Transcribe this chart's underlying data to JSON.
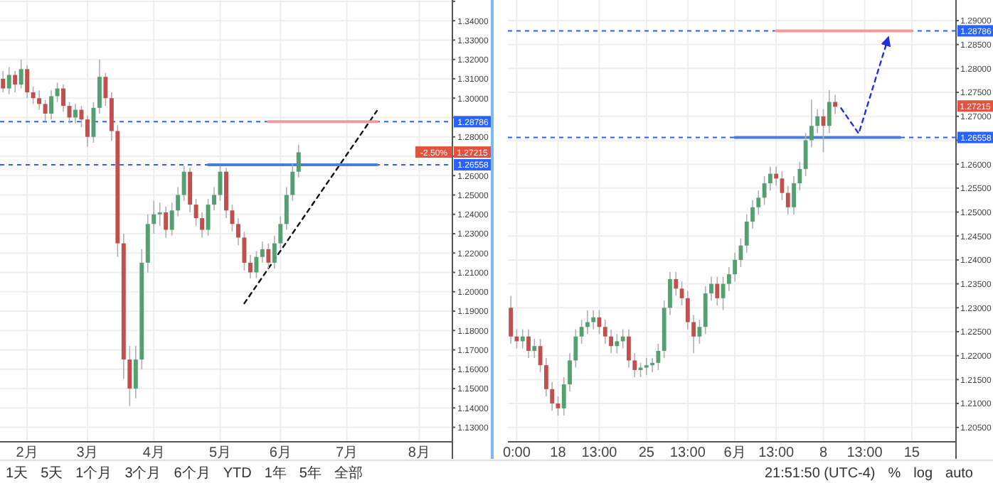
{
  "chart_data": [
    {
      "type": "candlestick",
      "categories": [
        null,
        null,
        null,
        null,
        "2月",
        null,
        null,
        null,
        null,
        null,
        null,
        null,
        null,
        null,
        "3月",
        null,
        null,
        null,
        null,
        null,
        null,
        null,
        null,
        null,
        null,
        "4月",
        null,
        null,
        null,
        null,
        null,
        null,
        null,
        null,
        null,
        null,
        "5月",
        null,
        null,
        null,
        null,
        null,
        null,
        null,
        null,
        null,
        "6月",
        null,
        null,
        null,
        null,
        null,
        null,
        null,
        null,
        null,
        null,
        "7月",
        null,
        null,
        null,
        null,
        null,
        null,
        null,
        null,
        null,
        null,
        null,
        "8月",
        null,
        null,
        null,
        null,
        null
      ],
      "ohlc": [
        [
          1.31,
          1.314,
          1.303,
          1.305
        ],
        [
          1.305,
          1.316,
          1.302,
          1.312
        ],
        [
          1.312,
          1.314,
          1.303,
          1.307
        ],
        [
          1.307,
          1.32,
          1.305,
          1.315
        ],
        [
          1.315,
          1.317,
          1.3,
          1.303
        ],
        [
          1.303,
          1.306,
          1.297,
          1.3
        ],
        [
          1.3,
          1.304,
          1.294,
          1.297
        ],
        [
          1.297,
          1.299,
          1.288,
          1.292
        ],
        [
          1.292,
          1.304,
          1.289,
          1.301
        ],
        [
          1.301,
          1.308,
          1.298,
          1.305
        ],
        [
          1.305,
          1.307,
          1.293,
          1.296
        ],
        [
          1.296,
          1.298,
          1.287,
          1.29
        ],
        [
          1.29,
          1.297,
          1.287,
          1.294
        ],
        [
          1.294,
          1.296,
          1.285,
          1.289
        ],
        [
          1.289,
          1.291,
          1.275,
          1.28
        ],
        [
          1.28,
          1.298,
          1.277,
          1.295
        ],
        [
          1.295,
          1.32,
          1.292,
          1.311
        ],
        [
          1.311,
          1.313,
          1.296,
          1.3
        ],
        [
          1.3,
          1.303,
          1.278,
          1.283
        ],
        [
          1.283,
          1.286,
          1.218,
          1.225
        ],
        [
          1.225,
          1.23,
          1.155,
          1.165
        ],
        [
          1.165,
          1.172,
          1.141,
          1.15
        ],
        [
          1.15,
          1.172,
          1.145,
          1.165
        ],
        [
          1.165,
          1.222,
          1.16,
          1.215
        ],
        [
          1.215,
          1.24,
          1.21,
          1.235
        ],
        [
          1.235,
          1.247,
          1.23,
          1.24
        ],
        [
          1.24,
          1.246,
          1.234,
          1.241
        ],
        [
          1.241,
          1.244,
          1.228,
          1.232
        ],
        [
          1.232,
          1.246,
          1.229,
          1.242
        ],
        [
          1.242,
          1.254,
          1.239,
          1.25
        ],
        [
          1.25,
          1.265,
          1.247,
          1.262
        ],
        [
          1.262,
          1.264,
          1.241,
          1.245
        ],
        [
          1.245,
          1.248,
          1.234,
          1.238
        ],
        [
          1.238,
          1.241,
          1.228,
          1.232
        ],
        [
          1.232,
          1.248,
          1.229,
          1.245
        ],
        [
          1.245,
          1.254,
          1.242,
          1.25
        ],
        [
          1.25,
          1.265,
          1.247,
          1.262
        ],
        [
          1.262,
          1.264,
          1.238,
          1.242
        ],
        [
          1.242,
          1.245,
          1.231,
          1.235
        ],
        [
          1.235,
          1.238,
          1.224,
          1.228
        ],
        [
          1.228,
          1.231,
          1.211,
          1.215
        ],
        [
          1.215,
          1.219,
          1.207,
          1.21
        ],
        [
          1.21,
          1.221,
          1.207,
          1.218
        ],
        [
          1.218,
          1.226,
          1.215,
          1.222
        ],
        [
          1.222,
          1.225,
          1.212,
          1.215
        ],
        [
          1.215,
          1.229,
          1.212,
          1.225
        ],
        [
          1.225,
          1.239,
          1.222,
          1.235
        ],
        [
          1.235,
          1.254,
          1.232,
          1.25
        ],
        [
          1.25,
          1.266,
          1.247,
          1.262
        ],
        [
          1.262,
          1.276,
          1.259,
          1.272
        ],
        null,
        null,
        null,
        null,
        null,
        null,
        null,
        null,
        null,
        null,
        null,
        null,
        null,
        null,
        null,
        null,
        null,
        null,
        null,
        null,
        null,
        null,
        null,
        null,
        null
      ],
      "ylim": [
        1.1225,
        1.3507
      ],
      "yticks": [
        {
          "value": 1.13,
          "label": "1.13000"
        },
        {
          "value": 1.14,
          "label": "1.14000"
        },
        {
          "value": 1.15,
          "label": "1.15000"
        },
        {
          "value": 1.16,
          "label": "1.16000"
        },
        {
          "value": 1.17,
          "label": "1.17000"
        },
        {
          "value": 1.18,
          "label": "1.18000"
        },
        {
          "value": 1.19,
          "label": "1.19000"
        },
        {
          "value": 1.2,
          "label": "1.20000"
        },
        {
          "value": 1.21,
          "label": "1.21000"
        },
        {
          "value": 1.22,
          "label": "1.22000"
        },
        {
          "value": 1.23,
          "label": "1.23000"
        },
        {
          "value": 1.24,
          "label": "1.24000"
        },
        {
          "value": 1.25,
          "label": "1.25000"
        },
        {
          "value": 1.26,
          "label": "1.26000"
        },
        {
          "value": 1.27,
          "label": null
        },
        {
          "value": 1.28,
          "label": "1.28000"
        },
        {
          "value": 1.29,
          "label": null
        },
        {
          "value": 1.3,
          "label": "1.30000"
        },
        {
          "value": 1.31,
          "label": "1.31000"
        },
        {
          "value": 1.32,
          "label": "1.32000"
        },
        {
          "value": 1.33,
          "label": "1.33000"
        },
        {
          "value": 1.34,
          "label": "1.34000"
        },
        {
          "value": 1.35,
          "label": null
        }
      ],
      "grid": true,
      "ref_lines": [
        {
          "axis": "y",
          "value": 1.28786,
          "label": "1.28786",
          "color": "#2962ff",
          "line_style": "dashed"
        },
        {
          "axis": "y",
          "value": 1.26558,
          "label": "1.26558",
          "color": "#2962ff",
          "line_style": "dashed"
        }
      ],
      "series": [
        {
          "type": "line",
          "values": [
            null,
            null,
            null,
            null,
            null,
            null,
            null,
            null,
            null,
            null,
            null,
            null,
            null,
            null,
            null,
            null,
            null,
            null,
            null,
            null,
            null,
            null,
            null,
            null,
            null,
            null,
            null,
            null,
            null,
            null,
            null,
            null,
            null,
            null,
            null,
            null,
            null,
            null,
            null,
            null,
            1.194,
            null,
            null,
            null,
            null,
            null,
            null,
            null,
            null,
            null,
            null,
            null,
            null,
            null,
            null,
            null,
            null,
            null,
            null,
            null,
            null,
            null,
            1.2935,
            null,
            null,
            null,
            null,
            null,
            null,
            null,
            null,
            null,
            null,
            null,
            null
          ],
          "color": "#111111",
          "line_style": "dashed"
        },
        {
          "type": "line",
          "values": [
            null,
            null,
            null,
            null,
            null,
            null,
            null,
            null,
            null,
            null,
            null,
            null,
            null,
            null,
            null,
            null,
            null,
            null,
            null,
            null,
            null,
            null,
            null,
            null,
            null,
            null,
            null,
            null,
            null,
            null,
            null,
            null,
            null,
            null,
            null,
            null,
            null,
            null,
            null,
            null,
            null,
            null,
            null,
            null,
            1.28786,
            null,
            null,
            null,
            null,
            null,
            null,
            null,
            null,
            null,
            null,
            null,
            null,
            null,
            null,
            null,
            null,
            null,
            1.28786,
            null,
            null,
            null,
            null,
            null,
            null,
            null,
            null,
            null,
            null,
            null,
            null
          ],
          "color": "#f29a9a",
          "line_style": "solid"
        },
        {
          "type": "line",
          "values": [
            null,
            null,
            null,
            null,
            null,
            null,
            null,
            null,
            null,
            null,
            null,
            null,
            null,
            null,
            null,
            null,
            null,
            null,
            null,
            null,
            null,
            null,
            null,
            null,
            null,
            null,
            null,
            null,
            null,
            null,
            null,
            null,
            null,
            null,
            1.26558,
            null,
            null,
            null,
            null,
            null,
            null,
            null,
            null,
            null,
            null,
            null,
            null,
            null,
            null,
            null,
            null,
            null,
            null,
            null,
            null,
            null,
            null,
            null,
            null,
            null,
            null,
            null,
            1.26558,
            null,
            null,
            null,
            null,
            null,
            null,
            null,
            null,
            null,
            null,
            null,
            null
          ],
          "color": "#4a7fd6",
          "line_style": "solid"
        }
      ],
      "annotations": [
        {
          "text": "1.27215",
          "y": 1.27215
        },
        {
          "text": "-2.50%",
          "y": 1.27215
        },
        "1天",
        "5天",
        "1个月",
        "3个月",
        "6个月",
        "YTD",
        "1年",
        "5年",
        "全部"
      ]
    },
    {
      "type": "candlestick",
      "categories": [
        null,
        "0:00",
        null,
        null,
        null,
        null,
        null,
        null,
        "18",
        null,
        null,
        null,
        null,
        null,
        null,
        "13:00",
        null,
        null,
        null,
        null,
        null,
        null,
        null,
        "25",
        null,
        null,
        null,
        null,
        null,
        null,
        "13:00",
        null,
        null,
        null,
        null,
        null,
        null,
        null,
        "6月",
        null,
        null,
        null,
        null,
        null,
        null,
        "13:00",
        null,
        null,
        null,
        null,
        null,
        null,
        null,
        "8",
        null,
        null,
        null,
        null,
        null,
        null,
        "13:00",
        null,
        null,
        null,
        null,
        null,
        null,
        null,
        "15",
        null,
        null,
        null,
        null,
        null,
        null,
        null
      ],
      "ohlc": [
        [
          1.23,
          1.2325,
          1.2225,
          1.224
        ],
        [
          1.224,
          1.2255,
          1.2215,
          1.223
        ],
        [
          1.223,
          1.2255,
          1.2215,
          1.224
        ],
        [
          1.224,
          1.2255,
          1.2195,
          1.221
        ],
        [
          1.221,
          1.2235,
          1.2195,
          1.222
        ],
        [
          1.222,
          1.2235,
          1.2165,
          1.218
        ],
        [
          1.218,
          1.2195,
          1.2115,
          1.213
        ],
        [
          1.213,
          1.2145,
          1.2085,
          1.21
        ],
        [
          1.21,
          1.2115,
          1.2075,
          1.209
        ],
        [
          1.209,
          1.2155,
          1.2075,
          1.214
        ],
        [
          1.214,
          1.2205,
          1.2125,
          1.219
        ],
        [
          1.219,
          1.2255,
          1.2175,
          1.224
        ],
        [
          1.224,
          1.2275,
          1.2225,
          1.226
        ],
        [
          1.226,
          1.2295,
          1.2245,
          1.227
        ],
        [
          1.227,
          1.2295,
          1.2255,
          1.228
        ],
        [
          1.228,
          1.2295,
          1.2245,
          1.226
        ],
        [
          1.226,
          1.2275,
          1.2225,
          1.224
        ],
        [
          1.224,
          1.2255,
          1.2205,
          1.222
        ],
        [
          1.222,
          1.2245,
          1.2205,
          1.223
        ],
        [
          1.223,
          1.2255,
          1.2215,
          1.224
        ],
        [
          1.224,
          1.2255,
          1.2175,
          1.219
        ],
        [
          1.219,
          1.2205,
          1.2155,
          1.217
        ],
        [
          1.217,
          1.2185,
          1.2155,
          1.2175
        ],
        [
          1.2175,
          1.2195,
          1.216,
          1.218
        ],
        [
          1.218,
          1.2195,
          1.2165,
          1.2185
        ],
        [
          1.2185,
          1.2225,
          1.217,
          1.221
        ],
        [
          1.221,
          1.2315,
          1.2195,
          1.23
        ],
        [
          1.23,
          1.2375,
          1.2285,
          1.236
        ],
        [
          1.236,
          1.2375,
          1.2325,
          1.234
        ],
        [
          1.234,
          1.2355,
          1.2305,
          1.232
        ],
        [
          1.232,
          1.2335,
          1.2255,
          1.227
        ],
        [
          1.227,
          1.2285,
          1.2205,
          1.224
        ],
        [
          1.224,
          1.2275,
          1.2225,
          1.226
        ],
        [
          1.226,
          1.2345,
          1.2245,
          1.233
        ],
        [
          1.233,
          1.2365,
          1.2315,
          1.235
        ],
        [
          1.235,
          1.2365,
          1.2305,
          1.232
        ],
        [
          1.232,
          1.2365,
          1.2295,
          1.235
        ],
        [
          1.235,
          1.2385,
          1.2335,
          1.237
        ],
        [
          1.237,
          1.2415,
          1.2355,
          1.24
        ],
        [
          1.24,
          1.2445,
          1.2385,
          1.243
        ],
        [
          1.243,
          1.2495,
          1.2415,
          1.248
        ],
        [
          1.248,
          1.2525,
          1.2465,
          1.251
        ],
        [
          1.251,
          1.2545,
          1.2495,
          1.253
        ],
        [
          1.253,
          1.2575,
          1.2515,
          1.256
        ],
        [
          1.256,
          1.2595,
          1.2545,
          1.258
        ],
        [
          1.258,
          1.2595,
          1.2555,
          1.257
        ],
        [
          1.257,
          1.2585,
          1.2525,
          1.254
        ],
        [
          1.254,
          1.2555,
          1.2495,
          1.251
        ],
        [
          1.251,
          1.2575,
          1.2495,
          1.256
        ],
        [
          1.256,
          1.2605,
          1.2545,
          1.259
        ],
        [
          1.259,
          1.2665,
          1.2575,
          1.265
        ],
        [
          1.265,
          1.2735,
          1.2635,
          1.268
        ],
        [
          1.268,
          1.2715,
          1.2665,
          1.27
        ],
        [
          1.27,
          1.2715,
          1.2625,
          1.268
        ],
        [
          1.268,
          1.2755,
          1.2665,
          1.273
        ],
        [
          1.273,
          1.2745,
          1.2705,
          1.272
        ],
        null,
        null,
        null,
        null,
        null,
        null,
        null,
        null,
        null,
        null,
        null,
        null,
        null,
        null,
        null,
        null,
        null,
        null,
        null,
        null
      ],
      "ylim": [
        1.202,
        1.2943
      ],
      "yticks": [
        {
          "value": 1.205,
          "label": "1.20500"
        },
        {
          "value": 1.21,
          "label": "1.21000"
        },
        {
          "value": 1.215,
          "label": "1.21500"
        },
        {
          "value": 1.22,
          "label": "1.22000"
        },
        {
          "value": 1.225,
          "label": "1.22500"
        },
        {
          "value": 1.23,
          "label": "1.23000"
        },
        {
          "value": 1.235,
          "label": "1.23500"
        },
        {
          "value": 1.24,
          "label": "1.24000"
        },
        {
          "value": 1.245,
          "label": "1.24500"
        },
        {
          "value": 1.25,
          "label": "1.25000"
        },
        {
          "value": 1.255,
          "label": "1.25500"
        },
        {
          "value": 1.26,
          "label": "1.26000"
        },
        {
          "value": 1.265,
          "label": null
        },
        {
          "value": 1.27,
          "label": "1.27000"
        },
        {
          "value": 1.275,
          "label": "1.27500"
        },
        {
          "value": 1.28,
          "label": "1.28000"
        },
        {
          "value": 1.285,
          "label": "1.28500"
        },
        {
          "value": 1.29,
          "label": "1.29000"
        }
      ],
      "grid": true,
      "ref_lines": [
        {
          "axis": "y",
          "value": 1.28786,
          "label": "1.28786",
          "color": "#2962ff",
          "line_style": "dashed"
        },
        {
          "axis": "y",
          "value": 1.26558,
          "label": "1.26558",
          "color": "#2962ff",
          "line_style": "dashed"
        }
      ],
      "series": [
        {
          "type": "line",
          "values": [
            null,
            null,
            null,
            null,
            null,
            null,
            null,
            null,
            null,
            null,
            null,
            null,
            null,
            null,
            null,
            null,
            null,
            null,
            null,
            null,
            null,
            null,
            null,
            null,
            null,
            null,
            null,
            null,
            null,
            null,
            null,
            null,
            null,
            null,
            null,
            null,
            null,
            null,
            null,
            null,
            null,
            null,
            null,
            null,
            null,
            null,
            null,
            null,
            null,
            null,
            null,
            null,
            null,
            null,
            null,
            null,
            1.2717,
            null,
            null,
            1.2664,
            null,
            null,
            null,
            null,
            1.2864,
            null,
            null,
            null,
            null,
            null,
            null,
            null,
            null,
            null,
            null,
            null
          ],
          "color": "#2030e0",
          "line_style": "dashed"
        },
        {
          "type": "line",
          "values": [
            null,
            null,
            null,
            null,
            null,
            null,
            null,
            null,
            null,
            null,
            null,
            null,
            null,
            null,
            null,
            null,
            null,
            null,
            null,
            null,
            null,
            null,
            null,
            null,
            null,
            null,
            null,
            null,
            null,
            null,
            null,
            null,
            null,
            null,
            null,
            null,
            null,
            null,
            null,
            null,
            null,
            null,
            null,
            null,
            null,
            1.28786,
            null,
            null,
            null,
            null,
            null,
            null,
            null,
            null,
            null,
            null,
            null,
            null,
            null,
            null,
            null,
            null,
            null,
            null,
            null,
            null,
            null,
            null,
            1.28786,
            null,
            null,
            null,
            null,
            null,
            null,
            null
          ],
          "color": "#f29a9a",
          "line_style": "solid"
        },
        {
          "type": "line",
          "values": [
            null,
            null,
            null,
            null,
            null,
            null,
            null,
            null,
            null,
            null,
            null,
            null,
            null,
            null,
            null,
            null,
            null,
            null,
            null,
            null,
            null,
            null,
            null,
            null,
            null,
            null,
            null,
            null,
            null,
            null,
            null,
            null,
            null,
            null,
            null,
            null,
            null,
            null,
            1.26558,
            null,
            null,
            null,
            null,
            null,
            null,
            null,
            null,
            null,
            null,
            null,
            null,
            null,
            null,
            null,
            null,
            null,
            null,
            null,
            null,
            null,
            null,
            null,
            null,
            null,
            null,
            null,
            1.26558,
            null,
            null,
            null,
            null,
            null,
            null,
            null,
            null,
            null
          ],
          "color": "#4a7fd6",
          "line_style": "solid"
        }
      ],
      "annotations": [
        {
          "text": "1.27215",
          "y": 1.27215
        },
        "21:51:50 (UTC-4)",
        "%",
        "log",
        "auto"
      ]
    }
  ]
}
